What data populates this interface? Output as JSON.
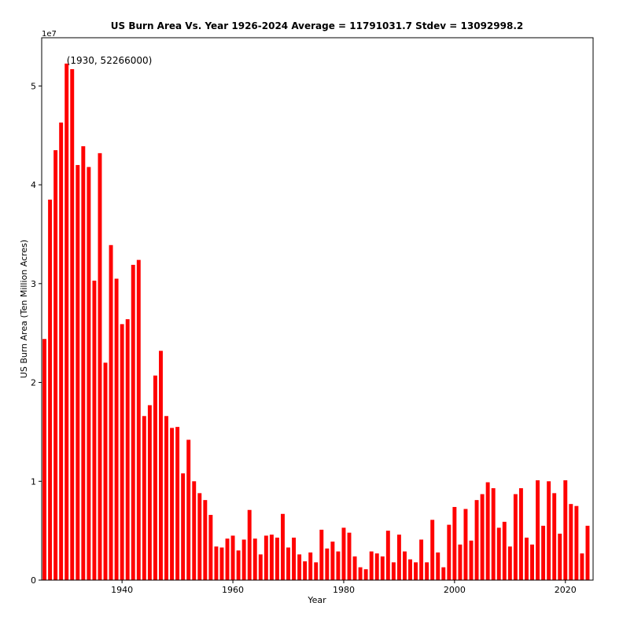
{
  "chart_data": {
    "type": "bar",
    "title": "US Burn Area Vs. Year 1926-2024 Average = 11791031.7 Stdev = 13092998.2",
    "xlabel": "Year",
    "ylabel": "US Burn Area (Ten Million Acres)",
    "y_offset_label": "1e7",
    "xlim": [
      1925.5,
      2025.0
    ],
    "ylim": [
      0,
      54880000
    ],
    "y_ticks": [
      0,
      10000000,
      20000000,
      30000000,
      40000000,
      50000000
    ],
    "y_tick_labels": [
      "0",
      "1",
      "2",
      "3",
      "4",
      "5"
    ],
    "x_ticks": [
      1940,
      1960,
      1980,
      2000,
      2020
    ],
    "x_tick_labels": [
      "1940",
      "1960",
      "1980",
      "2000",
      "2020"
    ],
    "bar_color": "#ff0000",
    "grid": false,
    "annotation": {
      "text": "(1930, 52266000)",
      "x": 1930,
      "y": 52266000
    },
    "x": [
      1926,
      1927,
      1928,
      1929,
      1930,
      1931,
      1932,
      1933,
      1934,
      1935,
      1936,
      1937,
      1938,
      1939,
      1940,
      1941,
      1942,
      1943,
      1944,
      1945,
      1946,
      1947,
      1948,
      1949,
      1950,
      1951,
      1952,
      1953,
      1954,
      1955,
      1956,
      1957,
      1958,
      1959,
      1960,
      1961,
      1962,
      1963,
      1964,
      1965,
      1966,
      1967,
      1968,
      1969,
      1970,
      1971,
      1972,
      1973,
      1974,
      1975,
      1976,
      1977,
      1978,
      1979,
      1980,
      1981,
      1982,
      1983,
      1984,
      1985,
      1986,
      1987,
      1988,
      1989,
      1990,
      1991,
      1992,
      1993,
      1994,
      1995,
      1996,
      1997,
      1998,
      1999,
      2000,
      2001,
      2002,
      2003,
      2004,
      2005,
      2006,
      2007,
      2008,
      2009,
      2010,
      2011,
      2012,
      2013,
      2014,
      2015,
      2016,
      2017,
      2018,
      2019,
      2020,
      2021,
      2022,
      2023,
      2024
    ],
    "values": [
      24400000,
      38500000,
      43500000,
      46300000,
      52266000,
      51700000,
      42000000,
      43900000,
      41800000,
      30300000,
      43200000,
      22000000,
      33900000,
      30500000,
      25900000,
      26400000,
      31900000,
      32400000,
      16600000,
      17700000,
      20700000,
      23200000,
      16600000,
      15400000,
      15500000,
      10800000,
      14200000,
      10000000,
      8800000,
      8100000,
      6600000,
      3400000,
      3300000,
      4200000,
      4500000,
      3000000,
      4100000,
      7100000,
      4200000,
      2600000,
      4500000,
      4600000,
      4300000,
      6700000,
      3300000,
      4300000,
      2600000,
      1900000,
      2800000,
      1800000,
      5100000,
      3200000,
      3900000,
      2900000,
      5300000,
      4800000,
      2400000,
      1300000,
      1100000,
      2900000,
      2700000,
      2400000,
      5000000,
      1800000,
      4600000,
      2900000,
      2100000,
      1800000,
      4100000,
      1800000,
      6100000,
      2800000,
      1300000,
      5600000,
      7400000,
      3600000,
      7200000,
      4000000,
      8100000,
      8700000,
      9900000,
      9300000,
      5300000,
      5900000,
      3400000,
      8700000,
      9300000,
      4300000,
      3600000,
      10100000,
      5500000,
      10000000,
      8800000,
      4700000,
      10100000,
      7700000,
      7500000,
      2700000,
      5500000
    ]
  }
}
